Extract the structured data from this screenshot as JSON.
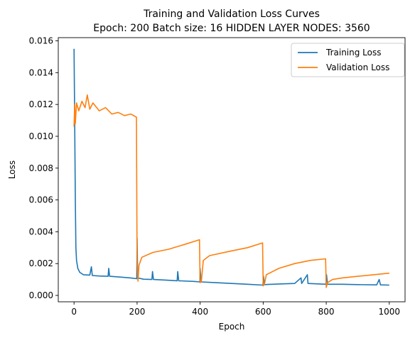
{
  "chart_data": {
    "type": "line",
    "title": "Training and Validation Loss Curves",
    "subtitle": "Epoch: 200 Batch size: 16 HIDDEN LAYER NODES: 3560",
    "xlabel": "Epoch",
    "ylabel": "Loss",
    "xlim": [
      -50,
      1050
    ],
    "ylim": [
      -0.0004,
      0.0162
    ],
    "xticks": [
      0,
      200,
      400,
      600,
      800,
      1000
    ],
    "yticks": [
      0.0,
      0.002,
      0.004,
      0.006,
      0.008,
      0.01,
      0.012,
      0.014,
      0.016
    ],
    "ytick_labels": [
      "0.000",
      "0.002",
      "0.004",
      "0.006",
      "0.008",
      "0.010",
      "0.012",
      "0.014",
      "0.016"
    ],
    "grid": false,
    "legend": "top-right",
    "series": [
      {
        "name": "Training Loss",
        "color": "#1f77b4",
        "points": [
          [
            0,
            0.0155
          ],
          [
            2,
            0.011
          ],
          [
            4,
            0.006
          ],
          [
            6,
            0.003
          ],
          [
            8,
            0.0022
          ],
          [
            12,
            0.0017
          ],
          [
            18,
            0.00145
          ],
          [
            30,
            0.0013
          ],
          [
            50,
            0.00128
          ],
          [
            55,
            0.0018
          ],
          [
            58,
            0.00125
          ],
          [
            80,
            0.00122
          ],
          [
            108,
            0.0012
          ],
          [
            110,
            0.0017
          ],
          [
            113,
            0.0012
          ],
          [
            150,
            0.00115
          ],
          [
            180,
            0.0011
          ],
          [
            199,
            0.00105
          ],
          [
            200,
            0.0036
          ],
          [
            202,
            0.0011
          ],
          [
            220,
            0.00102
          ],
          [
            247,
            0.001
          ],
          [
            249,
            0.0015
          ],
          [
            252,
            0.001
          ],
          [
            300,
            0.00095
          ],
          [
            327,
            0.00092
          ],
          [
            329,
            0.0015
          ],
          [
            332,
            0.00092
          ],
          [
            380,
            0.00088
          ],
          [
            399,
            0.00085
          ],
          [
            400,
            0.0017
          ],
          [
            403,
            0.00085
          ],
          [
            450,
            0.0008
          ],
          [
            500,
            0.00075
          ],
          [
            550,
            0.0007
          ],
          [
            599,
            0.00065
          ],
          [
            601,
            0.0012
          ],
          [
            604,
            0.00068
          ],
          [
            650,
            0.00072
          ],
          [
            700,
            0.00075
          ],
          [
            720,
            0.0011
          ],
          [
            722,
            0.00075
          ],
          [
            740,
            0.0013
          ],
          [
            742,
            0.00075
          ],
          [
            799,
            0.0007
          ],
          [
            801,
            0.0013
          ],
          [
            804,
            0.0007
          ],
          [
            850,
            0.0007
          ],
          [
            900,
            0.00068
          ],
          [
            960,
            0.00066
          ],
          [
            968,
            0.001
          ],
          [
            972,
            0.00066
          ],
          [
            1000,
            0.00065
          ]
        ]
      },
      {
        "name": "Validation Loss",
        "color": "#ff7f0e",
        "points": [
          [
            0,
            0.0106
          ],
          [
            2,
            0.012
          ],
          [
            4,
            0.0108
          ],
          [
            8,
            0.0121
          ],
          [
            15,
            0.0116
          ],
          [
            25,
            0.0122
          ],
          [
            35,
            0.0118
          ],
          [
            42,
            0.0126
          ],
          [
            50,
            0.0117
          ],
          [
            60,
            0.0121
          ],
          [
            80,
            0.0116
          ],
          [
            100,
            0.0118
          ],
          [
            120,
            0.0114
          ],
          [
            140,
            0.0115
          ],
          [
            160,
            0.0113
          ],
          [
            180,
            0.0114
          ],
          [
            198,
            0.0112
          ],
          [
            200,
            0.0021
          ],
          [
            203,
            0.0009
          ],
          [
            206,
            0.0019
          ],
          [
            215,
            0.0024
          ],
          [
            250,
            0.0027
          ],
          [
            300,
            0.0029
          ],
          [
            350,
            0.0032
          ],
          [
            398,
            0.0035
          ],
          [
            400,
            0.0008
          ],
          [
            404,
            0.0009
          ],
          [
            410,
            0.0022
          ],
          [
            430,
            0.0025
          ],
          [
            500,
            0.0028
          ],
          [
            550,
            0.003
          ],
          [
            598,
            0.0033
          ],
          [
            600,
            0.0006
          ],
          [
            604,
            0.0007
          ],
          [
            610,
            0.0013
          ],
          [
            650,
            0.0017
          ],
          [
            700,
            0.002
          ],
          [
            750,
            0.0022
          ],
          [
            798,
            0.0023
          ],
          [
            800,
            0.0005
          ],
          [
            804,
            0.0008
          ],
          [
            820,
            0.001
          ],
          [
            850,
            0.0011
          ],
          [
            900,
            0.0012
          ],
          [
            950,
            0.0013
          ],
          [
            1000,
            0.0014
          ]
        ]
      }
    ]
  }
}
